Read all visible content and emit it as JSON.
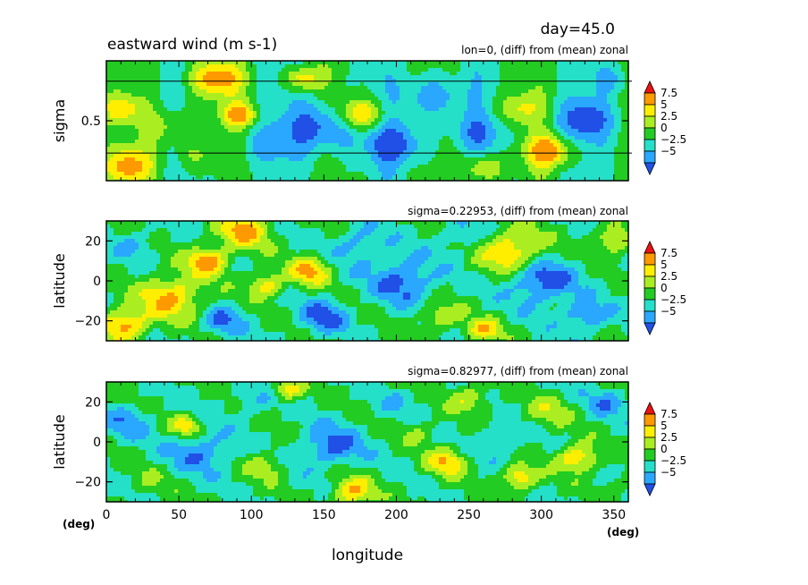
{
  "figure": {
    "day_label": "day=45.0",
    "title": "eastward wind (m s-1)",
    "x_axis_label": "longitude",
    "x_unit_left": "(deg)",
    "x_unit_right": "(deg)",
    "x_ticks": [
      "0",
      "50",
      "100",
      "150",
      "200",
      "250",
      "300",
      "350"
    ]
  },
  "colorbar": {
    "labels": [
      "7.5",
      "5",
      "2.5",
      "0",
      "−2.5",
      "−5"
    ],
    "colors": [
      "#2050e6",
      "#2aa8ff",
      "#24e0c8",
      "#22cc22",
      "#aaee22",
      "#ffee00",
      "#ff9900",
      "#ee1111"
    ],
    "levels": [
      -5,
      -2.5,
      0,
      2.5,
      5,
      7.5
    ]
  },
  "chart_data": [
    {
      "type": "heatmap",
      "subtitle": "lon=0, (diff) from (mean) zonal",
      "ylabel": "sigma",
      "y_ticks": [
        "0.5"
      ],
      "xlim": [
        0,
        360
      ],
      "ylim": [
        0,
        1
      ],
      "y_tick_values": [
        0.5
      ],
      "reference_lines_sigma": [
        0.83,
        0.23
      ],
      "values_note": "",
      "blobs": [
        {
          "x": 15,
          "y": 0.12,
          "r": 18,
          "v": 8
        },
        {
          "x": 10,
          "y": 0.6,
          "r": 14,
          "v": 6
        },
        {
          "x": 45,
          "y": 0.45,
          "r": 20,
          "v": 4
        },
        {
          "x": 75,
          "y": 0.85,
          "r": 18,
          "v": 9
        },
        {
          "x": 92,
          "y": 0.55,
          "r": 12,
          "v": 8
        },
        {
          "x": 110,
          "y": 0.3,
          "r": 18,
          "v": -3
        },
        {
          "x": 135,
          "y": 0.85,
          "r": 12,
          "v": 7
        },
        {
          "x": 150,
          "y": 0.45,
          "r": 25,
          "v": -7
        },
        {
          "x": 175,
          "y": 0.55,
          "r": 16,
          "v": 9
        },
        {
          "x": 200,
          "y": 0.3,
          "r": 20,
          "v": -6
        },
        {
          "x": 225,
          "y": 0.7,
          "r": 22,
          "v": -5
        },
        {
          "x": 255,
          "y": 0.4,
          "r": 18,
          "v": -4
        },
        {
          "x": 285,
          "y": 0.6,
          "r": 16,
          "v": 5
        },
        {
          "x": 305,
          "y": 0.25,
          "r": 16,
          "v": 9
        },
        {
          "x": 330,
          "y": 0.5,
          "r": 20,
          "v": -6
        },
        {
          "x": 350,
          "y": 0.85,
          "r": 14,
          "v": -3
        },
        {
          "x": 60,
          "y": 0.2,
          "r": 14,
          "v": 3
        },
        {
          "x": 260,
          "y": 0.1,
          "r": 14,
          "v": 6
        }
      ]
    },
    {
      "type": "heatmap",
      "subtitle": "sigma=0.22953, (diff) from (mean) zonal",
      "ylabel": "latitude",
      "y_ticks": [
        "20",
        "0",
        "−20"
      ],
      "xlim": [
        0,
        360
      ],
      "ylim": [
        -30,
        30
      ],
      "y_tick_values": [
        20,
        0,
        -20
      ],
      "values_note": "",
      "blobs": [
        {
          "x": 12,
          "y": -22,
          "r": 16,
          "v": 9
        },
        {
          "x": 20,
          "y": 18,
          "r": 14,
          "v": -3
        },
        {
          "x": 45,
          "y": -8,
          "r": 22,
          "v": 8
        },
        {
          "x": 70,
          "y": 10,
          "r": 14,
          "v": 9
        },
        {
          "x": 80,
          "y": -20,
          "r": 14,
          "v": -5
        },
        {
          "x": 95,
          "y": 25,
          "r": 18,
          "v": 8
        },
        {
          "x": 110,
          "y": -2,
          "r": 12,
          "v": 7
        },
        {
          "x": 140,
          "y": 5,
          "r": 14,
          "v": 8
        },
        {
          "x": 150,
          "y": -18,
          "r": 16,
          "v": -6
        },
        {
          "x": 175,
          "y": 18,
          "r": 18,
          "v": -4
        },
        {
          "x": 205,
          "y": 0,
          "r": 22,
          "v": -6
        },
        {
          "x": 230,
          "y": -18,
          "r": 14,
          "v": 5
        },
        {
          "x": 245,
          "y": 22,
          "r": 16,
          "v": -3
        },
        {
          "x": 280,
          "y": 15,
          "r": 22,
          "v": 8
        },
        {
          "x": 300,
          "y": 0,
          "r": 22,
          "v": -7
        },
        {
          "x": 330,
          "y": -18,
          "r": 16,
          "v": -5
        },
        {
          "x": 350,
          "y": 20,
          "r": 14,
          "v": 6
        },
        {
          "x": 260,
          "y": -25,
          "r": 12,
          "v": 7
        }
      ]
    },
    {
      "type": "heatmap",
      "subtitle": "sigma=0.82977, (diff) from (mean) zonal",
      "ylabel": "latitude",
      "y_ticks": [
        "20",
        "0",
        "−20"
      ],
      "xlim": [
        0,
        360
      ],
      "ylim": [
        -30,
        30
      ],
      "y_tick_values": [
        20,
        0,
        -20
      ],
      "values_note": "",
      "blobs": [
        {
          "x": 15,
          "y": 10,
          "r": 16,
          "v": -4
        },
        {
          "x": 30,
          "y": -20,
          "r": 14,
          "v": 2
        },
        {
          "x": 55,
          "y": 8,
          "r": 10,
          "v": 7
        },
        {
          "x": 65,
          "y": -5,
          "r": 20,
          "v": -5
        },
        {
          "x": 100,
          "y": 20,
          "r": 14,
          "v": -3
        },
        {
          "x": 110,
          "y": -12,
          "r": 14,
          "v": 4
        },
        {
          "x": 125,
          "y": 26,
          "r": 10,
          "v": 7
        },
        {
          "x": 155,
          "y": -2,
          "r": 20,
          "v": -6
        },
        {
          "x": 170,
          "y": -25,
          "r": 14,
          "v": 8
        },
        {
          "x": 200,
          "y": 20,
          "r": 14,
          "v": -2
        },
        {
          "x": 215,
          "y": 5,
          "r": 12,
          "v": 3
        },
        {
          "x": 235,
          "y": -10,
          "r": 14,
          "v": 7
        },
        {
          "x": 250,
          "y": 22,
          "r": 14,
          "v": 5
        },
        {
          "x": 270,
          "y": 0,
          "r": 16,
          "v": -3
        },
        {
          "x": 285,
          "y": -18,
          "r": 12,
          "v": 8
        },
        {
          "x": 305,
          "y": 15,
          "r": 16,
          "v": 4
        },
        {
          "x": 325,
          "y": -8,
          "r": 14,
          "v": 8
        },
        {
          "x": 345,
          "y": 20,
          "r": 14,
          "v": -4
        },
        {
          "x": 355,
          "y": -22,
          "r": 12,
          "v": 2
        }
      ]
    }
  ]
}
